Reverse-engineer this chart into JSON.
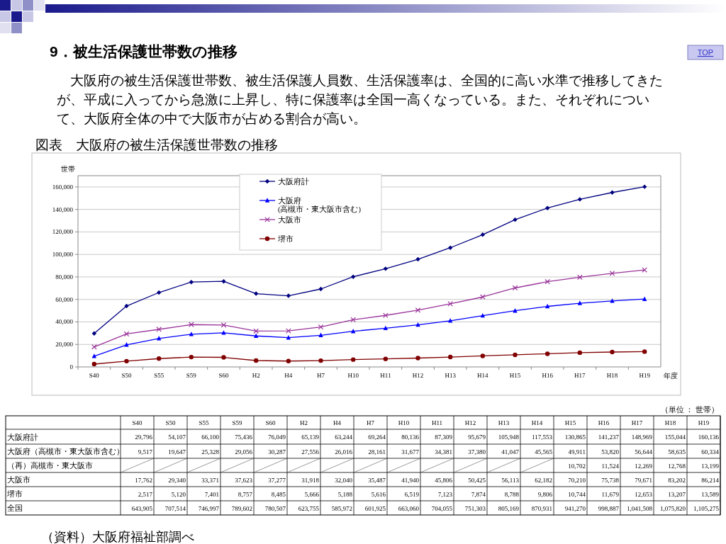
{
  "chart_data": [
    {
      "type": "line",
      "title": "図表　大阪府の被生活保護世帯数の推移",
      "annotations": [
        "9．被生活保護世帯数の推移",
        "大阪府の被生活保護世帯数、被生活保護人員数、生活保護率は、全国的に高い水準で推移してきたが、平成に入ってから急激に上昇し、特に保護率は全国一高くなっている。また、それぞれについて、大阪府全体の中で大阪市が占める割合が高い。",
        "TOP",
        "（資料）大阪府福祉部調べ"
      ],
      "ylabel": "世帯",
      "xlabel": "年度",
      "categories": [
        "S40",
        "S50",
        "S55",
        "S59",
        "S60",
        "H2",
        "H4",
        "H7",
        "H10",
        "H11",
        "H12",
        "H13",
        "H14",
        "H15",
        "H16",
        "H17",
        "H18",
        "H19"
      ],
      "series": [
        {
          "name": "大阪府計",
          "color": "#000080",
          "marker": "diamond",
          "values": [
            29796,
            54107,
            66100,
            75436,
            76049,
            65139,
            63244,
            69264,
            80136,
            87309,
            95679,
            105948,
            117553,
            130865,
            141237,
            148969,
            155044,
            160136
          ]
        },
        {
          "name": "大阪府\n(高槻市・東大阪市含む)",
          "color": "#0000ff",
          "marker": "triangle",
          "values": [
            9517,
            19647,
            25328,
            29056,
            30287,
            27556,
            26016,
            28161,
            31677,
            34381,
            37380,
            41047,
            45565,
            49911,
            53820,
            56644,
            58635,
            60334
          ]
        },
        {
          "name": "大阪市",
          "color": "#993399",
          "marker": "cross",
          "values": [
            17762,
            29340,
            33371,
            37623,
            37277,
            31918,
            32040,
            35487,
            41940,
            45806,
            50425,
            56113,
            62182,
            70210,
            75738,
            79671,
            83202,
            86214
          ]
        },
        {
          "name": "堺市",
          "color": "#800000",
          "marker": "circle",
          "values": [
            2517,
            5120,
            7401,
            8757,
            8485,
            5666,
            5188,
            5616,
            6519,
            7123,
            7874,
            8788,
            9806,
            10744,
            11679,
            12653,
            13207,
            13589
          ]
        }
      ],
      "ylim": [
        0,
        170000
      ],
      "yticks": [
        0,
        {
          "value": 20000,
          "label": "20,000"
        },
        {
          "value": 40000,
          "label": "40,000"
        },
        {
          "value": 60000,
          "label": "60,000"
        },
        {
          "value": 80000,
          "label": "80,000"
        },
        {
          "value": 100000,
          "label": "100,000"
        },
        {
          "value": 120000,
          "label": "120,000"
        },
        {
          "value": 140000,
          "label": "140,000"
        },
        {
          "value": 160000,
          "label": "160,000"
        }
      ],
      "grid": "y",
      "legend": "top",
      "line_style": "solid"
    },
    {
      "type": "other",
      "annotations": [
        "（単位 ： 世帯）"
      ],
      "data_labels": true,
      "categories": [
        "S40",
        "S50",
        "S55",
        "S59",
        "S60",
        "H2",
        "H4",
        "H7",
        "H10",
        "H11",
        "H12",
        "H13",
        "H14",
        "H15",
        "H16",
        "H17",
        "H18",
        "H19"
      ],
      "series": [
        {
          "name": "大阪府計",
          "values": [
            29796,
            54107,
            66100,
            75436,
            76049,
            65139,
            63244,
            69264,
            80136,
            87309,
            95679,
            105948,
            117553,
            130865,
            141237,
            148969,
            155044,
            160136
          ],
          "value_labels": [
            "29,796",
            "54,107",
            "66,100",
            "75,436",
            "76,049",
            "65,139",
            "63,244",
            "69,264",
            "80,136",
            "87,309",
            "95,679",
            "105,948",
            "117,553",
            "130,865",
            "141,237",
            "148,969",
            "155,044",
            "160,136"
          ]
        },
        {
          "name": "大阪府（高槻市・東大阪市含む）",
          "values": [
            9517,
            19647,
            25328,
            29056,
            30287,
            27556,
            26016,
            28161,
            31677,
            34381,
            37380,
            41047,
            45565,
            49911,
            53820,
            56644,
            58635,
            60334
          ],
          "value_labels": [
            "9,517",
            "19,647",
            "25,328",
            "29,056",
            "30,287",
            "27,556",
            "26,016",
            "28,161",
            "31,677",
            "34,381",
            "37,380",
            "41,047",
            "45,565",
            "49,911",
            "53,820",
            "56,644",
            "58,635",
            "60,334"
          ]
        },
        {
          "name": "（再）高槻市・東大阪市",
          "values": [
            null,
            null,
            null,
            null,
            null,
            null,
            null,
            null,
            null,
            null,
            null,
            null,
            null,
            10702,
            11524,
            12269,
            12768,
            13199
          ],
          "value_labels": [
            null,
            null,
            null,
            null,
            null,
            null,
            null,
            null,
            null,
            null,
            null,
            null,
            null,
            "10,702",
            "11,524",
            "12,269",
            "12,768",
            "13,199"
          ]
        },
        {
          "name": "大阪市",
          "values": [
            17762,
            29340,
            33371,
            37623,
            37277,
            31918,
            32040,
            35487,
            41940,
            45806,
            50425,
            56113,
            62182,
            70210,
            75738,
            79671,
            83202,
            86214
          ],
          "value_labels": [
            "17,762",
            "29,340",
            "33,371",
            "37,623",
            "37,277",
            "31,918",
            "32,040",
            "35,487",
            "41,940",
            "45,806",
            "50,425",
            "56,113",
            "62,182",
            "70,210",
            "75,738",
            "79,671",
            "83,202",
            "86,214"
          ]
        },
        {
          "name": "堺市",
          "values": [
            2517,
            5120,
            7401,
            8757,
            8485,
            5666,
            5188,
            5616,
            6519,
            7123,
            7874,
            8788,
            9806,
            10744,
            11679,
            12653,
            13207,
            13589
          ],
          "value_labels": [
            "2,517",
            "5,120",
            "7,401",
            "8,757",
            "8,485",
            "5,666",
            "5,188",
            "5,616",
            "6,519",
            "7,123",
            "7,874",
            "8,788",
            "9,806",
            "10,744",
            "11,679",
            "12,653",
            "13,207",
            "13,589"
          ]
        },
        {
          "name": "全国",
          "values": [
            643905,
            707514,
            746997,
            789602,
            780507,
            623755,
            585972,
            601925,
            663060,
            704055,
            751303,
            805169,
            870931,
            941270,
            998887,
            1041508,
            1075820,
            1105275
          ],
          "value_labels": [
            "643,905",
            "707,514",
            "746,997",
            "789,602",
            "780,507",
            "623,755",
            "585,972",
            "601,925",
            "663,060",
            "704,055",
            "751,303",
            "805,169",
            "870,931",
            "941,270",
            "998,887",
            "1,041,508",
            "1,075,820",
            "1,105,275"
          ]
        }
      ]
    }
  ]
}
